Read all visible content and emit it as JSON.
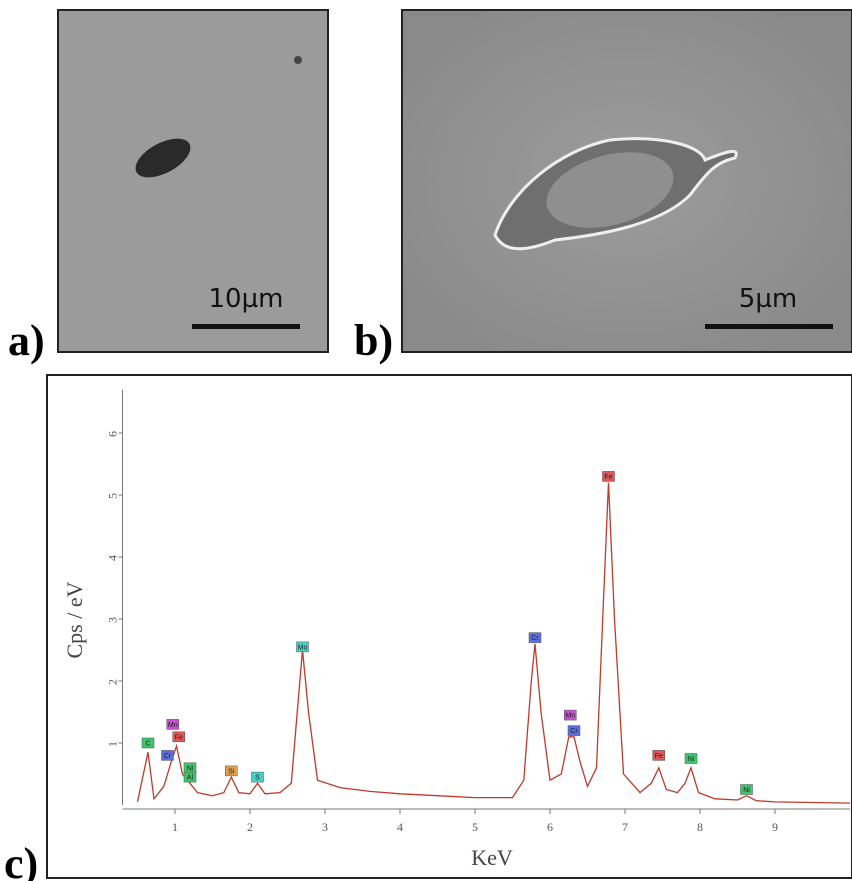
{
  "panels": [
    {
      "label": "a)",
      "scale_bar": "10µm"
    },
    {
      "label": "b)",
      "scale_bar": "5µm"
    }
  ],
  "chart_data": {
    "type": "line",
    "label": "c)",
    "xlabel": "KeV",
    "ylabel": "Cps / eV",
    "x": [
      0.5,
      0.64,
      0.72,
      0.85,
      0.95,
      1.02,
      1.1,
      1.2,
      1.3,
      1.5,
      1.65,
      1.75,
      1.85,
      2.0,
      2.1,
      2.2,
      2.4,
      2.55,
      2.65,
      2.7,
      2.78,
      2.9,
      3.2,
      3.6,
      4.0,
      4.5,
      5.0,
      5.5,
      5.65,
      5.75,
      5.8,
      5.88,
      6.0,
      6.15,
      6.25,
      6.32,
      6.4,
      6.5,
      6.62,
      6.72,
      6.78,
      6.86,
      6.98,
      7.2,
      7.35,
      7.45,
      7.55,
      7.7,
      7.8,
      7.88,
      7.98,
      8.2,
      8.5,
      8.62,
      8.75,
      9.0,
      9.5,
      10
    ],
    "series": [
      {
        "color": "#c0392b",
        "values": [
          0.05,
          0.85,
          0.1,
          0.3,
          0.7,
          0.95,
          0.5,
          0.35,
          0.2,
          0.15,
          0.2,
          0.45,
          0.2,
          0.18,
          0.35,
          0.18,
          0.2,
          0.35,
          1.8,
          2.5,
          1.5,
          0.4,
          0.28,
          0.22,
          0.18,
          0.15,
          0.12,
          0.12,
          0.4,
          2.0,
          2.6,
          1.5,
          0.4,
          0.5,
          1.1,
          1.1,
          0.7,
          0.3,
          0.6,
          3.5,
          5.2,
          3.0,
          0.5,
          0.2,
          0.35,
          0.6,
          0.25,
          0.2,
          0.35,
          0.6,
          0.2,
          0.1,
          0.08,
          0.15,
          0.07,
          0.05,
          0.04,
          0.03
        ]
      }
    ],
    "xlim": [
      0.3,
      10
    ],
    "ylim": [
      0,
      6.7
    ],
    "xticks": [
      1,
      2,
      3,
      4,
      5,
      6,
      7,
      8,
      9
    ],
    "yticks": [
      1,
      2,
      3,
      4,
      5,
      6
    ],
    "annotations": [
      {
        "x": 0.64,
        "y": 1.0,
        "text": "C",
        "color": "#3ec46d"
      },
      {
        "x": 0.9,
        "y": 0.8,
        "text": "Cr",
        "color": "#5b6fe0"
      },
      {
        "x": 0.97,
        "y": 1.3,
        "text": "Mn",
        "color": "#c94fd6"
      },
      {
        "x": 1.05,
        "y": 1.1,
        "text": "Fe",
        "color": "#e05555"
      },
      {
        "x": 1.2,
        "y": 0.6,
        "text": "Ni",
        "color": "#3ec46d"
      },
      {
        "x": 1.2,
        "y": 0.45,
        "text": "Al",
        "color": "#3ec46d"
      },
      {
        "x": 1.75,
        "y": 0.55,
        "text": "Si",
        "color": "#e0a050"
      },
      {
        "x": 2.1,
        "y": 0.45,
        "text": "S",
        "color": "#45d0c8"
      },
      {
        "x": 2.7,
        "y": 2.55,
        "text": "Mo",
        "color": "#45d0c8"
      },
      {
        "x": 5.8,
        "y": 2.7,
        "text": "Cr",
        "color": "#5b6fe0"
      },
      {
        "x": 6.27,
        "y": 1.45,
        "text": "Mn",
        "color": "#c94fd6"
      },
      {
        "x": 6.32,
        "y": 1.2,
        "text": "Cr",
        "color": "#5b6fe0"
      },
      {
        "x": 6.78,
        "y": 5.3,
        "text": "Fe",
        "color": "#e05555"
      },
      {
        "x": 7.45,
        "y": 0.8,
        "text": "Fe",
        "color": "#e05555"
      },
      {
        "x": 7.88,
        "y": 0.75,
        "text": "Ni",
        "color": "#3ec46d"
      },
      {
        "x": 8.62,
        "y": 0.25,
        "text": "Ni",
        "color": "#3ec46d"
      }
    ]
  }
}
